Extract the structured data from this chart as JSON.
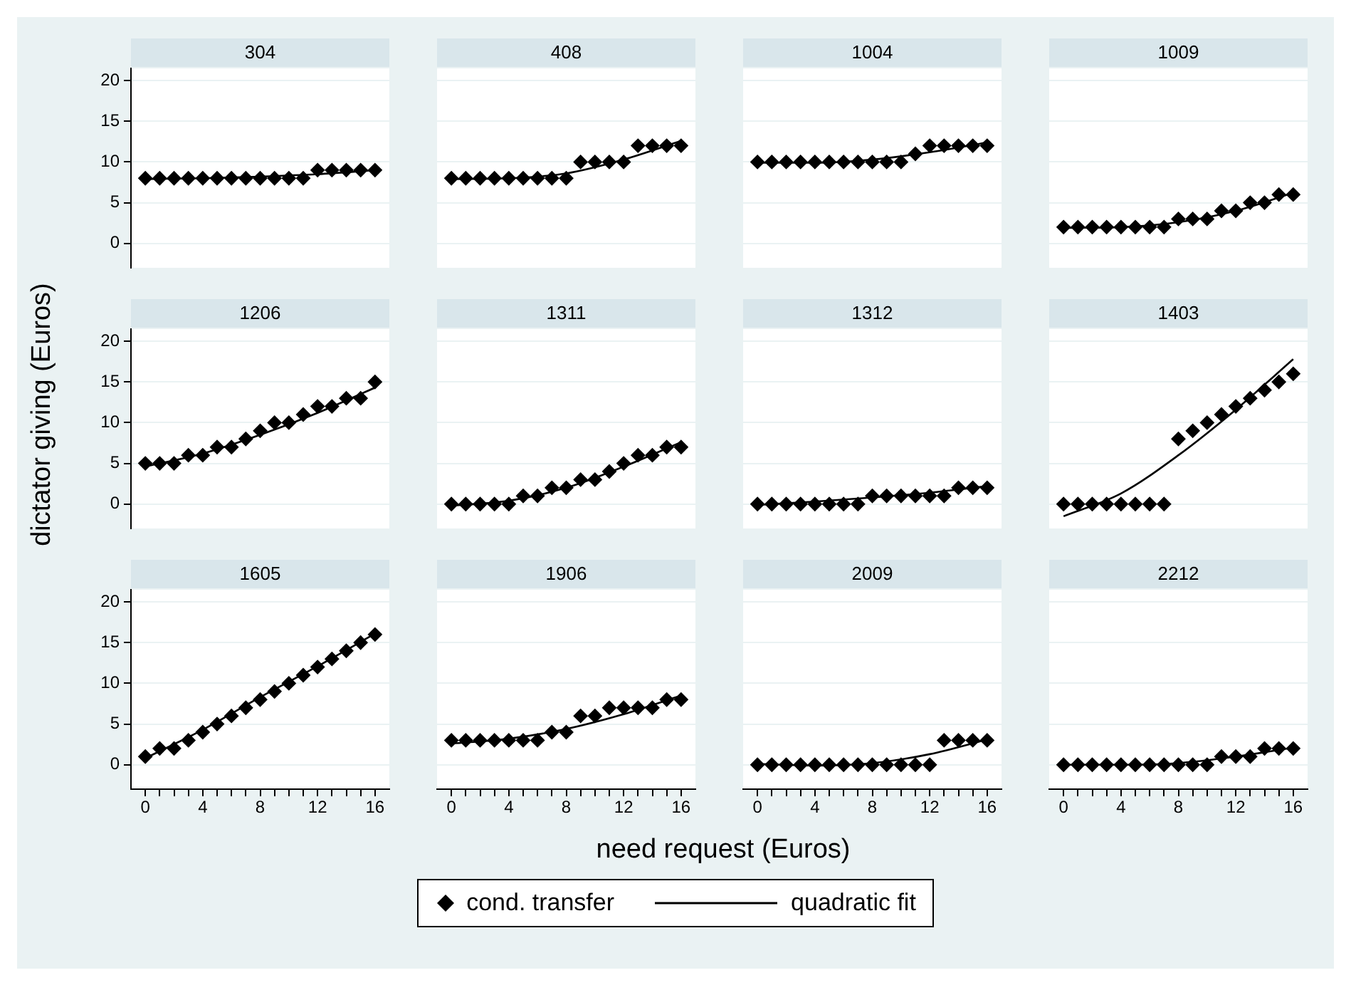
{
  "chart_data": [
    {
      "type": "scatter",
      "title": "304",
      "ylabel": "dictator giving (Euros)",
      "legend": "bottom",
      "tick_labels": "y",
      "grid": "y",
      "xlim": [
        -1,
        17
      ],
      "ylim": [
        -3,
        21.5
      ],
      "yticks": [
        0,
        5,
        10,
        15,
        20
      ],
      "x": [
        0,
        1,
        2,
        3,
        4,
        5,
        6,
        7,
        8,
        9,
        10,
        11,
        12,
        13,
        14,
        15,
        16
      ],
      "series": [
        {
          "name": "cond. transfer",
          "type": "scatter",
          "marker": "diamond",
          "color": "#000000",
          "values": [
            8,
            8,
            8,
            8,
            8,
            8,
            8,
            8,
            8,
            8,
            8,
            8,
            9,
            9,
            9,
            9,
            9
          ]
        },
        {
          "name": "quadratic fit",
          "type": "line",
          "marker": "none",
          "line_style": "solid",
          "color": "#000000",
          "x": [
            0,
            4,
            8,
            12,
            16
          ],
          "values": [
            7.9,
            8,
            8.2,
            8.5,
            9
          ]
        }
      ]
    },
    {
      "type": "scatter",
      "title": "408",
      "tick_labels": false,
      "grid": "y",
      "xlim": [
        -1,
        17
      ],
      "ylim": [
        -3,
        21.5
      ],
      "yticks": [
        0,
        5,
        10,
        15,
        20
      ],
      "x": [
        0,
        1,
        2,
        3,
        4,
        5,
        6,
        7,
        8,
        9,
        10,
        11,
        12,
        13,
        14,
        15,
        16
      ],
      "series": [
        {
          "type": "scatter",
          "marker": "diamond",
          "color": "#000000",
          "values": [
            8,
            8,
            8,
            8,
            8,
            8,
            8,
            8,
            8,
            10,
            10,
            10,
            10,
            12,
            12,
            12,
            12
          ]
        },
        {
          "type": "line",
          "marker": "none",
          "line_style": "solid",
          "color": "#000000",
          "x": [
            0,
            4,
            8,
            12,
            16
          ],
          "values": [
            7.9,
            8,
            8.6,
            10.3,
            12.6
          ]
        }
      ]
    },
    {
      "type": "scatter",
      "title": "1004",
      "tick_labels": false,
      "grid": "y",
      "xlim": [
        -1,
        17
      ],
      "ylim": [
        -3,
        21.5
      ],
      "yticks": [
        0,
        5,
        10,
        15,
        20
      ],
      "x": [
        0,
        1,
        2,
        3,
        4,
        5,
        6,
        7,
        8,
        9,
        10,
        11,
        12,
        13,
        14,
        15,
        16
      ],
      "series": [
        {
          "type": "scatter",
          "marker": "diamond",
          "color": "#000000",
          "values": [
            10,
            10,
            10,
            10,
            10,
            10,
            10,
            10,
            10,
            10,
            10,
            11,
            12,
            12,
            12,
            12,
            12
          ]
        },
        {
          "type": "line",
          "marker": "none",
          "line_style": "solid",
          "color": "#000000",
          "x": [
            0,
            4,
            8,
            12,
            16
          ],
          "values": [
            9.9,
            9.9,
            10.3,
            11.2,
            12.4
          ]
        }
      ]
    },
    {
      "type": "scatter",
      "title": "1009",
      "tick_labels": false,
      "grid": "y",
      "xlim": [
        -1,
        17
      ],
      "ylim": [
        -3,
        21.5
      ],
      "yticks": [
        0,
        5,
        10,
        15,
        20
      ],
      "x": [
        0,
        1,
        2,
        3,
        4,
        5,
        6,
        7,
        8,
        9,
        10,
        11,
        12,
        13,
        14,
        15,
        16
      ],
      "series": [
        {
          "type": "scatter",
          "marker": "diamond",
          "color": "#000000",
          "values": [
            2,
            2,
            2,
            2,
            2,
            2,
            2,
            2,
            3,
            3,
            3,
            4,
            4,
            5,
            5,
            6,
            6
          ]
        },
        {
          "type": "line",
          "marker": "none",
          "line_style": "solid",
          "color": "#000000",
          "x": [
            0,
            4,
            8,
            12,
            16
          ],
          "values": [
            1.9,
            2,
            2.6,
            4,
            6.2
          ]
        }
      ]
    },
    {
      "type": "scatter",
      "title": "1206",
      "tick_labels": "y",
      "grid": "y",
      "xlim": [
        -1,
        17
      ],
      "ylim": [
        -3,
        21.5
      ],
      "yticks": [
        0,
        5,
        10,
        15,
        20
      ],
      "x": [
        0,
        1,
        2,
        3,
        4,
        5,
        6,
        7,
        8,
        9,
        10,
        11,
        12,
        13,
        14,
        15,
        16
      ],
      "series": [
        {
          "type": "scatter",
          "marker": "diamond",
          "color": "#000000",
          "values": [
            5,
            5,
            5,
            6,
            6,
            7,
            7,
            8,
            9,
            10,
            10,
            11,
            12,
            12,
            13,
            13,
            15
          ]
        },
        {
          "type": "line",
          "marker": "none",
          "line_style": "solid",
          "color": "#000000",
          "x": [
            0,
            4,
            8,
            12,
            16
          ],
          "values": [
            4.6,
            6.2,
            8.5,
            11.2,
            14.3
          ]
        }
      ]
    },
    {
      "type": "scatter",
      "title": "1311",
      "tick_labels": false,
      "grid": "y",
      "xlim": [
        -1,
        17
      ],
      "ylim": [
        -3,
        21.5
      ],
      "yticks": [
        0,
        5,
        10,
        15,
        20
      ],
      "x": [
        0,
        1,
        2,
        3,
        4,
        5,
        6,
        7,
        8,
        9,
        10,
        11,
        12,
        13,
        14,
        15,
        16
      ],
      "series": [
        {
          "type": "scatter",
          "marker": "diamond",
          "color": "#000000",
          "values": [
            0,
            0,
            0,
            0,
            0,
            1,
            1,
            2,
            2,
            3,
            3,
            4,
            5,
            6,
            6,
            7,
            7
          ]
        },
        {
          "type": "line",
          "marker": "none",
          "line_style": "solid",
          "color": "#000000",
          "x": [
            0,
            4,
            8,
            12,
            16
          ],
          "values": [
            -0.2,
            0.4,
            2,
            4.6,
            7.6
          ]
        }
      ]
    },
    {
      "type": "scatter",
      "title": "1312",
      "tick_labels": false,
      "grid": "y",
      "xlim": [
        -1,
        17
      ],
      "ylim": [
        -3,
        21.5
      ],
      "yticks": [
        0,
        5,
        10,
        15,
        20
      ],
      "x": [
        0,
        1,
        2,
        3,
        4,
        5,
        6,
        7,
        8,
        9,
        10,
        11,
        12,
        13,
        14,
        15,
        16
      ],
      "series": [
        {
          "type": "scatter",
          "marker": "diamond",
          "color": "#000000",
          "values": [
            0,
            0,
            0,
            0,
            0,
            0,
            0,
            0,
            1,
            1,
            1,
            1,
            1,
            1,
            2,
            2,
            2
          ]
        },
        {
          "type": "line",
          "marker": "none",
          "line_style": "solid",
          "color": "#000000",
          "x": [
            0,
            4,
            8,
            12,
            16
          ],
          "values": [
            -0.1,
            0.3,
            0.8,
            1.4,
            2.2
          ]
        }
      ]
    },
    {
      "type": "scatter",
      "title": "1403",
      "tick_labels": false,
      "grid": "y",
      "xlim": [
        -1,
        17
      ],
      "ylim": [
        -3,
        21.5
      ],
      "yticks": [
        0,
        5,
        10,
        15,
        20
      ],
      "x": [
        0,
        1,
        2,
        3,
        4,
        5,
        6,
        7,
        8,
        9,
        10,
        11,
        12,
        13,
        14,
        15,
        16
      ],
      "series": [
        {
          "type": "scatter",
          "marker": "diamond",
          "color": "#000000",
          "values": [
            0,
            0,
            0,
            0,
            0,
            0,
            0,
            0,
            8,
            9,
            10,
            11,
            12,
            13,
            14,
            15,
            16
          ]
        },
        {
          "type": "line",
          "marker": "none",
          "line_style": "solid",
          "color": "#000000",
          "x": [
            0,
            4,
            8,
            12,
            16
          ],
          "values": [
            -1.5,
            1.3,
            6,
            11.6,
            17.8
          ]
        }
      ]
    },
    {
      "type": "scatter",
      "title": "1605",
      "grid": "y",
      "xlim": [
        -1,
        17
      ],
      "ylim": [
        -3,
        21.5
      ],
      "yticks": [
        0,
        5,
        10,
        15,
        20
      ],
      "xticks": [
        0,
        {
          "value": 1,
          "label": null
        },
        {
          "value": 2,
          "label": null
        },
        {
          "value": 3,
          "label": null
        },
        4,
        {
          "value": 5,
          "label": null
        },
        {
          "value": 6,
          "label": null
        },
        {
          "value": 7,
          "label": null
        },
        8,
        {
          "value": 9,
          "label": null
        },
        {
          "value": 10,
          "label": null
        },
        {
          "value": 11,
          "label": null
        },
        12,
        {
          "value": 13,
          "label": null
        },
        {
          "value": 14,
          "label": null
        },
        {
          "value": 15,
          "label": null
        },
        16
      ],
      "x": [
        0,
        1,
        2,
        3,
        4,
        5,
        6,
        7,
        8,
        9,
        10,
        11,
        12,
        13,
        14,
        15,
        16
      ],
      "series": [
        {
          "type": "scatter",
          "marker": "diamond",
          "color": "#000000",
          "values": [
            1,
            2,
            2,
            3,
            4,
            5,
            6,
            7,
            8,
            9,
            10,
            11,
            12,
            13,
            14,
            15,
            16
          ]
        },
        {
          "type": "line",
          "marker": "none",
          "line_style": "solid",
          "color": "#000000",
          "x": [
            0,
            4,
            8,
            12,
            16
          ],
          "values": [
            0.8,
            4.3,
            8.3,
            12.1,
            16.1
          ]
        }
      ]
    },
    {
      "type": "scatter",
      "title": "1906",
      "xlabel": "need request (Euros)",
      "tick_labels": "x",
      "grid": "y",
      "xlim": [
        -1,
        17
      ],
      "ylim": [
        -3,
        21.5
      ],
      "yticks": [
        0,
        5,
        10,
        15,
        20
      ],
      "xticks": [
        0,
        {
          "value": 1,
          "label": null
        },
        {
          "value": 2,
          "label": null
        },
        {
          "value": 3,
          "label": null
        },
        4,
        {
          "value": 5,
          "label": null
        },
        {
          "value": 6,
          "label": null
        },
        {
          "value": 7,
          "label": null
        },
        8,
        {
          "value": 9,
          "label": null
        },
        {
          "value": 10,
          "label": null
        },
        {
          "value": 11,
          "label": null
        },
        12,
        {
          "value": 13,
          "label": null
        },
        {
          "value": 14,
          "label": null
        },
        {
          "value": 15,
          "label": null
        },
        16
      ],
      "x": [
        0,
        1,
        2,
        3,
        4,
        5,
        6,
        7,
        8,
        9,
        10,
        11,
        12,
        13,
        14,
        15,
        16
      ],
      "series": [
        {
          "type": "scatter",
          "marker": "diamond",
          "color": "#000000",
          "values": [
            3,
            3,
            3,
            3,
            3,
            3,
            3,
            4,
            4,
            6,
            6,
            7,
            7,
            7,
            7,
            8,
            8
          ]
        },
        {
          "type": "line",
          "marker": "none",
          "line_style": "solid",
          "color": "#000000",
          "x": [
            0,
            4,
            8,
            12,
            16
          ],
          "values": [
            2.6,
            3.2,
            4.4,
            6.2,
            8.5
          ]
        }
      ]
    },
    {
      "type": "scatter",
      "title": "2009",
      "tick_labels": "x",
      "grid": "y",
      "xlim": [
        -1,
        17
      ],
      "ylim": [
        -3,
        21.5
      ],
      "yticks": [
        0,
        5,
        10,
        15,
        20
      ],
      "xticks": [
        0,
        {
          "value": 1,
          "label": null
        },
        {
          "value": 2,
          "label": null
        },
        {
          "value": 3,
          "label": null
        },
        4,
        {
          "value": 5,
          "label": null
        },
        {
          "value": 6,
          "label": null
        },
        {
          "value": 7,
          "label": null
        },
        8,
        {
          "value": 9,
          "label": null
        },
        {
          "value": 10,
          "label": null
        },
        {
          "value": 11,
          "label": null
        },
        12,
        {
          "value": 13,
          "label": null
        },
        {
          "value": 14,
          "label": null
        },
        {
          "value": 15,
          "label": null
        },
        16
      ],
      "x": [
        0,
        1,
        2,
        3,
        4,
        5,
        6,
        7,
        8,
        9,
        10,
        11,
        12,
        13,
        14,
        15,
        16
      ],
      "series": [
        {
          "type": "scatter",
          "marker": "diamond",
          "color": "#000000",
          "values": [
            0,
            0,
            0,
            0,
            0,
            0,
            0,
            0,
            0,
            0,
            0,
            0,
            0,
            3,
            3,
            3,
            3
          ]
        },
        {
          "type": "line",
          "marker": "none",
          "line_style": "solid",
          "color": "#000000",
          "x": [
            0,
            4,
            8,
            12,
            16
          ],
          "values": [
            0.1,
            -0.1,
            0.2,
            1.3,
            3.1
          ]
        }
      ]
    },
    {
      "type": "scatter",
      "title": "2212",
      "tick_labels": "x",
      "grid": "y",
      "xlim": [
        -1,
        17
      ],
      "ylim": [
        -3,
        21.5
      ],
      "yticks": [
        0,
        5,
        10,
        15,
        20
      ],
      "xticks": [
        0,
        {
          "value": 1,
          "label": null
        },
        {
          "value": 2,
          "label": null
        },
        {
          "value": 3,
          "label": null
        },
        4,
        {
          "value": 5,
          "label": null
        },
        {
          "value": 6,
          "label": null
        },
        {
          "value": 7,
          "label": null
        },
        8,
        {
          "value": 9,
          "label": null
        },
        {
          "value": 10,
          "label": null
        },
        {
          "value": 11,
          "label": null
        },
        12,
        {
          "value": 13,
          "label": null
        },
        {
          "value": 14,
          "label": null
        },
        {
          "value": 15,
          "label": null
        },
        16
      ],
      "x": [
        0,
        1,
        2,
        3,
        4,
        5,
        6,
        7,
        8,
        9,
        10,
        11,
        12,
        13,
        14,
        15,
        16
      ],
      "series": [
        {
          "type": "scatter",
          "marker": "diamond",
          "color": "#000000",
          "values": [
            0,
            0,
            0,
            0,
            0,
            0,
            0,
            0,
            0,
            0,
            0,
            1,
            1,
            1,
            2,
            2,
            2
          ]
        },
        {
          "type": "line",
          "marker": "none",
          "line_style": "solid",
          "color": "#000000",
          "x": [
            0,
            4,
            8,
            12,
            16
          ],
          "values": [
            0,
            0,
            0.2,
            1,
            2.1
          ]
        }
      ]
    }
  ]
}
